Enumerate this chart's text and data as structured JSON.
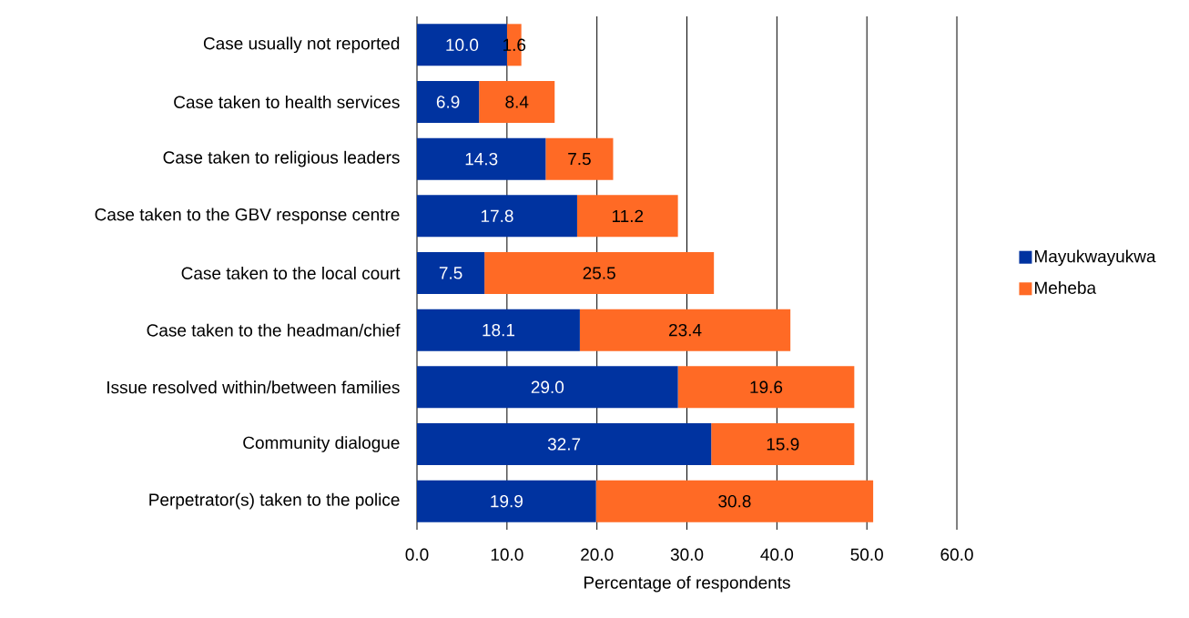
{
  "chart_data": {
    "type": "bar",
    "orientation": "horizontal",
    "stacked": true,
    "xlabel": "Percentage of respondents",
    "categories": [
      "Case usually not reported",
      "Case taken to health services",
      "Case taken to religious leaders",
      "Case taken to the GBV response centre",
      "Case taken to the local court",
      "Case taken to the headman/chief",
      "Issue resolved within/between families",
      "Community dialogue",
      "Perpetrator(s) taken to the police"
    ],
    "series": [
      {
        "name": "Mayukwayukwa",
        "color": "#0033a0",
        "values": [
          10.0,
          6.9,
          14.3,
          17.8,
          7.5,
          18.1,
          29.0,
          32.7,
          19.9
        ],
        "value_labels": [
          "10.0",
          "6.9",
          "14.3",
          "17.8",
          "7.5",
          "18.1",
          "29.0",
          "32.7",
          "19.9"
        ]
      },
      {
        "name": "Meheba",
        "color": "#ff6a25",
        "values": [
          1.6,
          8.4,
          7.5,
          11.2,
          25.5,
          23.4,
          19.6,
          15.9,
          30.8
        ],
        "value_labels": [
          "1.6",
          "8.4",
          "7.5",
          "11.2",
          "25.5",
          "23.4",
          "19.6",
          "15.9",
          "30.8"
        ]
      }
    ],
    "xlim": [
      0,
      60
    ],
    "xticks": [
      {
        "value": 0,
        "label": "0.0"
      },
      {
        "value": 10,
        "label": "10.0"
      },
      {
        "value": 20,
        "label": "20.0"
      },
      {
        "value": 30,
        "label": "30.0"
      },
      {
        "value": 40,
        "label": "40.0"
      },
      {
        "value": 50,
        "label": "50.0"
      },
      {
        "value": 60,
        "label": "60.0"
      }
    ],
    "grid": "x",
    "legend": "right"
  }
}
